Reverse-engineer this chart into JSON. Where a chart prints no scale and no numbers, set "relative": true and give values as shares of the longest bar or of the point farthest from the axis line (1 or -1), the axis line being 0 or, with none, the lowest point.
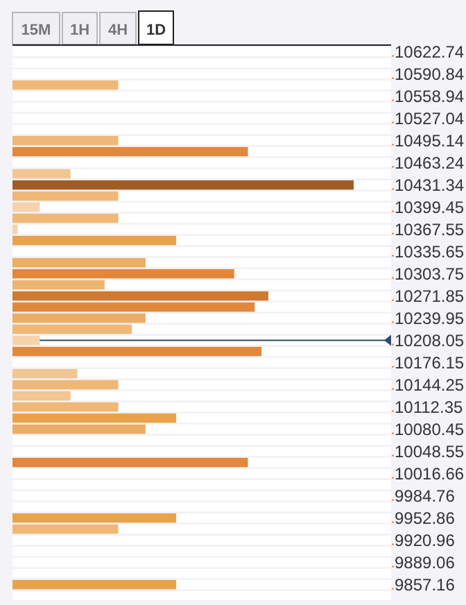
{
  "chart_data": {
    "type": "bar",
    "orientation": "horizontal",
    "relative": true,
    "annotations": [
      "15M",
      "1H",
      "4H",
      "1D"
    ],
    "categories": [
      "10622.74",
      null,
      "10590.84",
      null,
      "10558.94",
      null,
      "10527.04",
      null,
      "10495.14",
      null,
      "10463.24",
      null,
      "10431.34",
      null,
      "10399.45",
      null,
      "10367.55",
      null,
      "10335.65",
      null,
      "10303.75",
      null,
      "10271.85",
      null,
      "10239.95",
      null,
      "10208.05",
      null,
      "10176.15",
      null,
      "10144.25",
      null,
      "10112.35",
      null,
      "10080.45",
      null,
      "10048.55",
      null,
      "10016.66",
      null,
      "9984.76",
      null,
      "9952.86",
      null,
      "9920.96",
      null,
      "9889.06",
      null,
      "9857.16",
      null
    ],
    "values": [
      null,
      null,
      null,
      0.31,
      null,
      null,
      null,
      null,
      0.31,
      0.69,
      null,
      0.17,
      1,
      0.31,
      0.08,
      0.31,
      0.015,
      0.48,
      null,
      0.39,
      0.65,
      0.27,
      0.75,
      0.71,
      0.39,
      0.35,
      0.08,
      0.73,
      null,
      0.19,
      0.31,
      0.17,
      0.31,
      0.48,
      0.39,
      null,
      null,
      0.69,
      null,
      null,
      null,
      null,
      0.48,
      0.31,
      null,
      null,
      null,
      null,
      0.48,
      null
    ],
    "colors": [
      null,
      null,
      null,
      "#efb877",
      null,
      null,
      null,
      null,
      "#efb877",
      "#e3883a",
      null,
      "#f2c690",
      "#a05c24",
      "#efb877",
      "#f6d3ad",
      "#efb877",
      "#f6d3ad",
      "#e9a34a",
      null,
      "#ecad64",
      "#e3883a",
      "#edb573",
      "#cf7a30",
      "#e3883a",
      "#ecad64",
      "#efb877",
      "#f6d3ad",
      "#e3883a",
      null,
      "#f2c690",
      "#efb877",
      "#f2c690",
      "#efb877",
      "#e9a34a",
      "#ecad64",
      null,
      null,
      "#e3883a",
      null,
      null,
      null,
      null,
      "#e9a34a",
      "#efb877",
      null,
      null,
      null,
      null,
      "#e9a34a",
      null
    ],
    "ref_lines": [
      {
        "axis": "y",
        "value": "10208.05",
        "color": "#2d4a6b"
      }
    ]
  }
}
